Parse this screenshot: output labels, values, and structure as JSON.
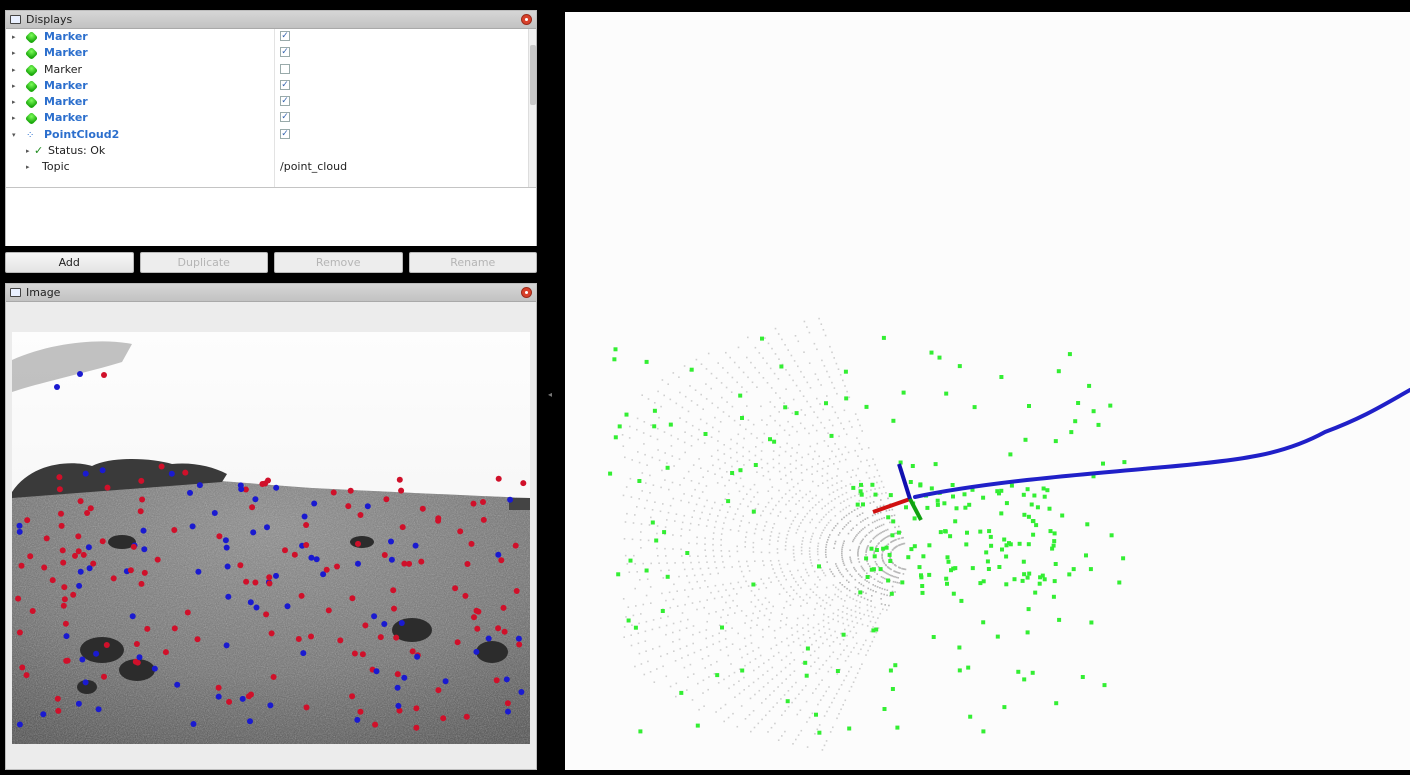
{
  "displays_panel": {
    "title": "Displays",
    "items": [
      {
        "name": "Marker",
        "checked": true,
        "enabled": true
      },
      {
        "name": "Marker",
        "checked": true,
        "enabled": true
      },
      {
        "name": "Marker",
        "checked": false,
        "enabled": false
      },
      {
        "name": "Marker",
        "checked": true,
        "enabled": true
      },
      {
        "name": "Marker",
        "checked": true,
        "enabled": true
      },
      {
        "name": "Marker",
        "checked": true,
        "enabled": true
      },
      {
        "name": "PointCloud2",
        "checked": true,
        "enabled": true,
        "expanded": true
      }
    ],
    "status_label": "Status: Ok",
    "topic_label": "Topic",
    "topic_value": "/point_cloud",
    "check_mark": "✓"
  },
  "buttons": {
    "add": "Add",
    "duplicate": "Duplicate",
    "remove": "Remove",
    "rename": "Rename"
  },
  "image_panel": {
    "title": "Image"
  },
  "colors": {
    "marker_text": "#2c6fcd",
    "feature_red": "#d0102a",
    "feature_blue": "#1a1ad0",
    "cloud_green": "#33ee33",
    "trajectory_blue": "#2020c8",
    "axis_red": "#d01010",
    "axis_green": "#10a010",
    "axis_blue": "#1010b0"
  },
  "icons": {
    "display_marker": "green-gem-icon",
    "display_pointcloud": "pointcloud-icon",
    "panel_close": "close-icon",
    "panel_header": "monitor-icon"
  }
}
